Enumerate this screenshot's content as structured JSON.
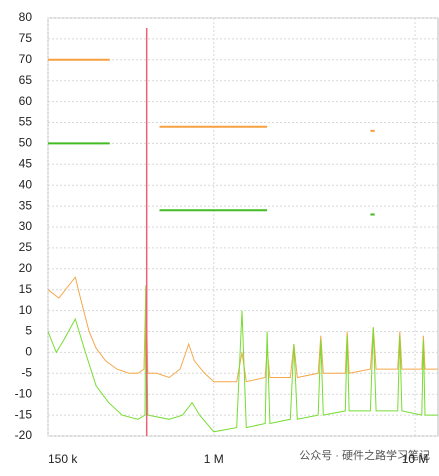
{
  "chart_data": {
    "type": "line",
    "xlog": true,
    "xlim": [
      150000,
      13000000
    ],
    "ylim": [
      -20,
      80
    ],
    "xticks": [
      {
        "value": 150000,
        "label": "150 k"
      },
      {
        "value": 1000000,
        "label": "1 M"
      },
      {
        "value": 10000000,
        "label": "10 M"
      }
    ],
    "yticks": [
      -20,
      -15,
      -10,
      -5,
      0,
      5,
      10,
      15,
      20,
      25,
      30,
      35,
      40,
      45,
      50,
      55,
      60,
      65,
      70,
      75,
      80
    ],
    "grid": true,
    "marker_x": 464000,
    "marker_color": "#f0607a",
    "limits": [
      {
        "color": "#f7a040",
        "x": [
          150000,
          304000
        ],
        "values": [
          70,
          70
        ]
      },
      {
        "color": "#44bb22",
        "x": [
          150000,
          304000
        ],
        "values": [
          50,
          50
        ]
      },
      {
        "color": "#f7a040",
        "x": [
          537000,
          1840000
        ],
        "values": [
          54,
          54
        ]
      },
      {
        "color": "#44bb22",
        "x": [
          537000,
          1840000
        ],
        "values": [
          34,
          34
        ]
      },
      {
        "color": "#f7a040",
        "x": [
          6000000,
          6300000
        ],
        "values": [
          53,
          53
        ]
      },
      {
        "color": "#44bb22",
        "x": [
          6000000,
          6300000
        ],
        "values": [
          33,
          33
        ]
      }
    ],
    "series": [
      {
        "color": "#f5a84a",
        "x": [
          150000,
          170000,
          190000,
          205000,
          220000,
          240000,
          260000,
          290000,
          330000,
          380000,
          420000,
          450000,
          460000,
          470000,
          520000,
          600000,
          680000,
          750000,
          800000,
          900000,
          1000000,
          1300000,
          1380000,
          1450000,
          1800000,
          1840000,
          1900000,
          2400000,
          2500000,
          2600000,
          3300000,
          3400000,
          3500000,
          4500000,
          4600000,
          4700000,
          6000000,
          6200000,
          6400000,
          8200000,
          8400000,
          8600000,
          10800000,
          11000000,
          11200000,
          13000000
        ],
        "values": [
          15,
          13,
          16,
          18,
          12,
          5,
          1,
          -2,
          -4,
          -5,
          -5,
          -4,
          16,
          -5,
          -5,
          -6,
          -4,
          2,
          -2,
          -5,
          -7,
          -7,
          0,
          -7,
          -6,
          1,
          -6,
          -6,
          2,
          -6,
          -5,
          4,
          -5,
          -5,
          5,
          -5,
          -4,
          6,
          -4,
          -4,
          5,
          -4,
          -4,
          4,
          -4,
          -4
        ]
      },
      {
        "color": "#77dd33",
        "x": [
          150000,
          165000,
          180000,
          205000,
          230000,
          260000,
          300000,
          350000,
          420000,
          455000,
          460000,
          470000,
          600000,
          700000,
          780000,
          850000,
          1000000,
          1300000,
          1380000,
          1450000,
          1800000,
          1840000,
          1900000,
          2400000,
          2500000,
          2600000,
          3300000,
          3400000,
          3500000,
          4500000,
          4600000,
          4700000,
          6000000,
          6200000,
          6400000,
          8200000,
          8400000,
          8600000,
          10800000,
          11000000,
          11200000,
          13000000
        ],
        "values": [
          5,
          0,
          3,
          8,
          0,
          -8,
          -12,
          -15,
          -16,
          -15,
          16,
          -15,
          -16,
          -15,
          -12,
          -15,
          -19,
          -18,
          10,
          -18,
          -17,
          5,
          -17,
          -16,
          2,
          -16,
          -15,
          3,
          -15,
          -14,
          4,
          -14,
          -14,
          6,
          -14,
          -14,
          4,
          -14,
          -15,
          3,
          -15,
          -15
        ]
      }
    ],
    "watermark": "公众号 · 硬件之路学习笔记"
  }
}
